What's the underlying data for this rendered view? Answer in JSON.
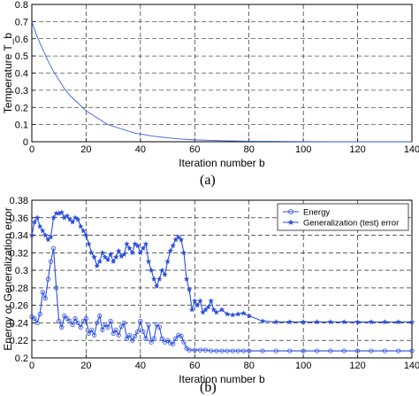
{
  "chart_data": [
    {
      "type": "line",
      "panel": "a",
      "caption": "(a)",
      "xlabel": "Iteration number b",
      "ylabel": "Temperature T_b",
      "xlim": [
        0,
        140
      ],
      "ylim": [
        0,
        0.8
      ],
      "xticks": [
        0,
        20,
        40,
        60,
        80,
        100,
        120,
        140
      ],
      "yticks": [
        0,
        0.1,
        0.2,
        0.3,
        0.4,
        0.5,
        0.6,
        0.7,
        0.8
      ],
      "ytick_labels": [
        "0",
        "0.1",
        "0.2",
        "0.3",
        "0.4",
        "0.5",
        "0.6",
        "0.7",
        "0.8"
      ],
      "grid": true,
      "series": [
        {
          "color": "#3a5fe0",
          "marker": "none",
          "x": [
            0,
            2,
            4,
            6,
            8,
            10,
            12,
            14,
            16,
            18,
            20,
            22,
            24,
            26,
            28,
            30,
            32,
            34,
            36,
            38,
            40,
            45,
            50,
            55,
            60,
            70,
            80,
            90,
            100,
            110,
            120,
            130,
            140
          ],
          "y": [
            0.7,
            0.61,
            0.54,
            0.47,
            0.41,
            0.36,
            0.31,
            0.27,
            0.24,
            0.21,
            0.18,
            0.16,
            0.14,
            0.12,
            0.1,
            0.09,
            0.08,
            0.07,
            0.06,
            0.05,
            0.045,
            0.032,
            0.023,
            0.016,
            0.011,
            0.006,
            0.003,
            0.002,
            0.001,
            0.0005,
            0.0003,
            0.0002,
            0.0001
          ]
        }
      ]
    },
    {
      "type": "line",
      "panel": "b",
      "caption": "(b)",
      "xlabel": "Iteration number b",
      "ylabel": "Energy or Generalization error",
      "xlim": [
        0,
        140
      ],
      "ylim": [
        0.2,
        0.38
      ],
      "xticks": [
        0,
        20,
        40,
        60,
        80,
        100,
        120,
        140
      ],
      "yticks": [
        0.2,
        0.22,
        0.24,
        0.26,
        0.28,
        0.3,
        0.32,
        0.34,
        0.36,
        0.38
      ],
      "ytick_labels": [
        "0.2",
        "0.22",
        "0.24",
        "0.26",
        "0.28",
        "0.3",
        "0.32",
        "0.34",
        "0.36",
        "0.38"
      ],
      "grid": true,
      "legend_position": "top-right",
      "series": [
        {
          "name": "Energy",
          "color": "#2a4de0",
          "marker": "circle",
          "x": [
            0,
            1,
            2,
            3,
            4,
            5,
            6,
            7,
            8,
            9,
            10,
            11,
            12,
            13,
            14,
            15,
            16,
            17,
            18,
            19,
            20,
            21,
            22,
            23,
            24,
            25,
            26,
            27,
            28,
            29,
            30,
            31,
            32,
            33,
            34,
            35,
            36,
            37,
            38,
            39,
            40,
            41,
            42,
            43,
            44,
            45,
            46,
            47,
            48,
            49,
            50,
            51,
            52,
            53,
            54,
            55,
            56,
            57,
            58,
            60,
            62,
            64,
            66,
            68,
            70,
            72,
            74,
            76,
            78,
            80,
            85,
            90,
            95,
            100,
            105,
            110,
            115,
            120,
            125,
            130,
            135,
            140
          ],
          "y": [
            0.247,
            0.245,
            0.24,
            0.25,
            0.275,
            0.268,
            0.29,
            0.31,
            0.325,
            0.28,
            0.242,
            0.235,
            0.248,
            0.245,
            0.242,
            0.238,
            0.245,
            0.24,
            0.235,
            0.242,
            0.245,
            0.228,
            0.232,
            0.226,
            0.24,
            0.248,
            0.232,
            0.238,
            0.235,
            0.242,
            0.228,
            0.232,
            0.226,
            0.236,
            0.24,
            0.222,
            0.226,
            0.22,
            0.225,
            0.23,
            0.242,
            0.23,
            0.222,
            0.238,
            0.218,
            0.222,
            0.238,
            0.235,
            0.222,
            0.218,
            0.22,
            0.217,
            0.216,
            0.222,
            0.226,
            0.225,
            0.218,
            0.211,
            0.209,
            0.209,
            0.209,
            0.209,
            0.208,
            0.208,
            0.208,
            0.208,
            0.208,
            0.208,
            0.208,
            0.208,
            0.208,
            0.208,
            0.208,
            0.208,
            0.208,
            0.208,
            0.208,
            0.208,
            0.208,
            0.208,
            0.208,
            0.208
          ]
        },
        {
          "name": "Generalization (test) error",
          "color": "#2a4de0",
          "marker": "star",
          "x": [
            0,
            1,
            2,
            3,
            4,
            5,
            6,
            7,
            8,
            9,
            10,
            11,
            12,
            13,
            14,
            15,
            16,
            17,
            18,
            19,
            20,
            21,
            22,
            23,
            24,
            25,
            26,
            27,
            28,
            29,
            30,
            31,
            32,
            33,
            34,
            35,
            36,
            37,
            38,
            39,
            40,
            41,
            42,
            43,
            44,
            45,
            46,
            47,
            48,
            49,
            50,
            51,
            52,
            53,
            54,
            55,
            56,
            57,
            58,
            59,
            60,
            61,
            62,
            63,
            64,
            65,
            66,
            67,
            68,
            70,
            72,
            74,
            76,
            78,
            80,
            85,
            90,
            95,
            100,
            105,
            110,
            115,
            120,
            125,
            130,
            135,
            140
          ],
          "y": [
            0.34,
            0.355,
            0.36,
            0.35,
            0.345,
            0.34,
            0.335,
            0.338,
            0.36,
            0.365,
            0.365,
            0.366,
            0.36,
            0.362,
            0.358,
            0.355,
            0.36,
            0.358,
            0.35,
            0.345,
            0.34,
            0.33,
            0.32,
            0.315,
            0.305,
            0.31,
            0.32,
            0.315,
            0.312,
            0.318,
            0.31,
            0.315,
            0.322,
            0.316,
            0.318,
            0.33,
            0.325,
            0.32,
            0.33,
            0.328,
            0.32,
            0.325,
            0.33,
            0.31,
            0.3,
            0.29,
            0.282,
            0.29,
            0.3,
            0.295,
            0.31,
            0.322,
            0.328,
            0.335,
            0.338,
            0.335,
            0.32,
            0.29,
            0.278,
            0.255,
            0.265,
            0.26,
            0.265,
            0.252,
            0.255,
            0.258,
            0.265,
            0.255,
            0.252,
            0.255,
            0.25,
            0.249,
            0.25,
            0.251,
            0.248,
            0.242,
            0.241,
            0.241,
            0.241,
            0.241,
            0.241,
            0.241,
            0.241,
            0.241,
            0.241,
            0.241,
            0.241
          ]
        }
      ]
    }
  ]
}
